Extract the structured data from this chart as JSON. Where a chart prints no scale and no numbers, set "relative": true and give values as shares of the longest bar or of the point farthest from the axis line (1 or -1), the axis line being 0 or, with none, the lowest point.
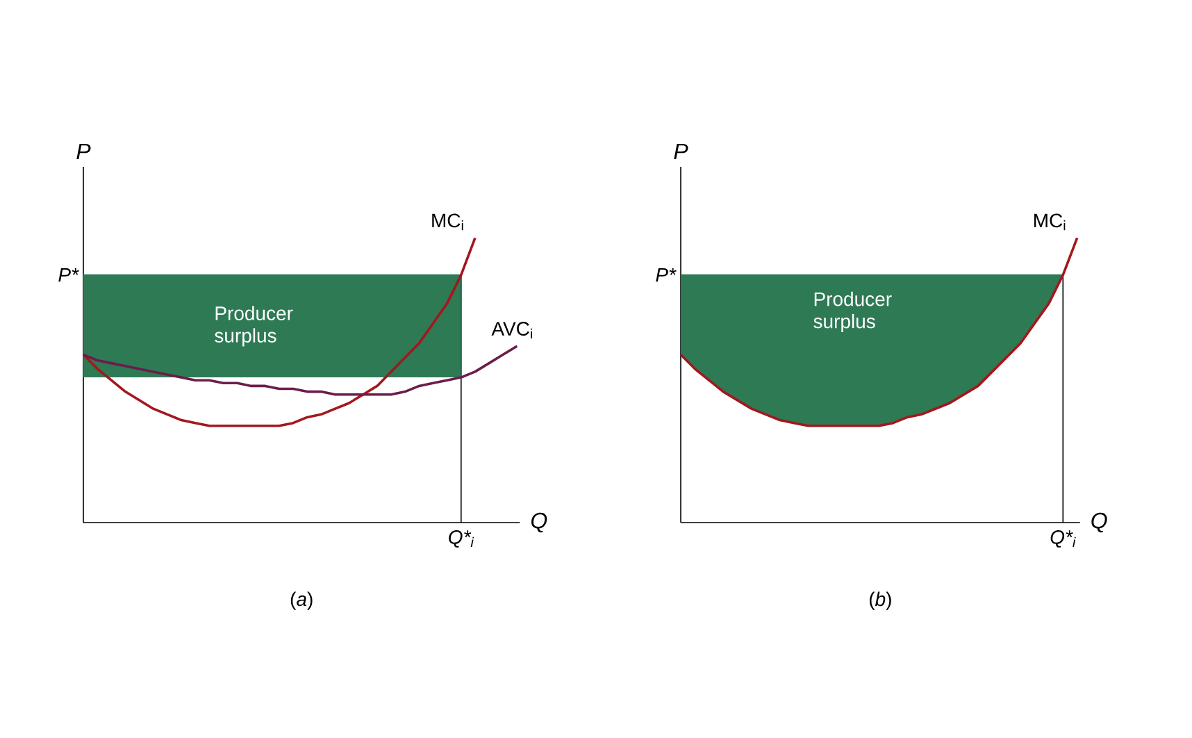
{
  "chart_data": [
    {
      "type": "line",
      "relative": true,
      "title": "(*a*)",
      "xlabel": "Q",
      "ylabel": "P",
      "categories": [
        null,
        null,
        null,
        null,
        null,
        null,
        null,
        null,
        null,
        null,
        null,
        null,
        null,
        null,
        null,
        null,
        null,
        null,
        null,
        null,
        null,
        null,
        null,
        null,
        null,
        null,
        null,
        null,
        null,
        null,
        null,
        null
      ],
      "series": [
        {
          "name": "MC$_{i}$",
          "color": "#a3171e",
          "values": [
            0.59,
            0.54,
            0.5,
            0.46,
            0.43,
            0.4,
            0.38,
            0.36,
            0.35,
            0.34,
            0.34,
            0.34,
            0.34,
            0.34,
            0.34,
            0.35,
            0.37,
            0.38,
            0.4,
            0.42,
            0.45,
            0.48,
            0.53,
            0.58,
            0.63,
            0.7,
            0.77,
            0.87,
            1,
            null,
            null,
            null
          ]
        },
        {
          "name": "AVC$_{i}$",
          "color": "#6b1d4a",
          "values": [
            0.59,
            0.57,
            0.56,
            0.55,
            0.54,
            0.53,
            0.52,
            0.51,
            0.5,
            0.5,
            0.49,
            0.49,
            0.48,
            0.48,
            0.47,
            0.47,
            0.46,
            0.46,
            0.45,
            0.45,
            0.45,
            0.45,
            0.45,
            0.46,
            0.48,
            0.49,
            0.5,
            0.51,
            0.53,
            0.56,
            0.59,
            0.62
          ]
        }
      ],
      "ref_lines": [
        {
          "axis": "y",
          "value": 0.87,
          "label": "P*",
          "color": "#2e7a55"
        }
      ],
      "bands": [
        {
          "axis": "y",
          "from": 0.51,
          "to": 0.87,
          "label": "Producer surplus",
          "color": "#2e7a55"
        }
      ],
      "annotations": [
        "Q*$_{i}$"
      ]
    },
    {
      "type": "line",
      "relative": true,
      "title": "(*b*)",
      "xlabel": "Q",
      "ylabel": "P",
      "categories": [
        null,
        null,
        null,
        null,
        null,
        null,
        null,
        null,
        null,
        null,
        null,
        null,
        null,
        null,
        null,
        null,
        null,
        null,
        null,
        null,
        null,
        null,
        null,
        null,
        null,
        null,
        null,
        null,
        null
      ],
      "series": [
        {
          "name": "MC$_{i}$",
          "color": "#a3171e",
          "values": [
            0.59,
            0.54,
            0.5,
            0.46,
            0.43,
            0.4,
            0.38,
            0.36,
            0.35,
            0.34,
            0.34,
            0.34,
            0.34,
            0.34,
            0.34,
            0.35,
            0.37,
            0.38,
            0.4,
            0.42,
            0.45,
            0.48,
            0.53,
            0.58,
            0.63,
            0.7,
            0.77,
            0.87,
            1
          ],
          "lower": [
            0.59,
            0.54,
            0.5,
            0.46,
            0.43,
            0.4,
            0.38,
            0.36,
            0.35,
            0.34,
            0.34,
            0.34,
            0.34,
            0.34,
            0.34,
            0.35,
            0.37,
            0.38,
            0.4,
            0.42,
            0.45,
            0.48,
            0.53,
            0.58,
            0.63,
            0.7,
            0.77,
            0.87,
            null
          ],
          "upper": [
            0.87,
            0.87,
            0.87,
            0.87,
            0.87,
            0.87,
            0.87,
            0.87,
            0.87,
            0.87,
            0.87,
            0.87,
            0.87,
            0.87,
            0.87,
            0.87,
            0.87,
            0.87,
            0.87,
            0.87,
            0.87,
            0.87,
            0.87,
            0.87,
            0.87,
            0.87,
            0.87,
            0.87,
            null
          ]
        }
      ],
      "ref_lines": [
        {
          "axis": "y",
          "value": 0.87,
          "label": "P*",
          "color": "#2e7a55"
        }
      ],
      "annotations": [
        "Producer surplus",
        "Q*$_{i}$"
      ]
    }
  ]
}
